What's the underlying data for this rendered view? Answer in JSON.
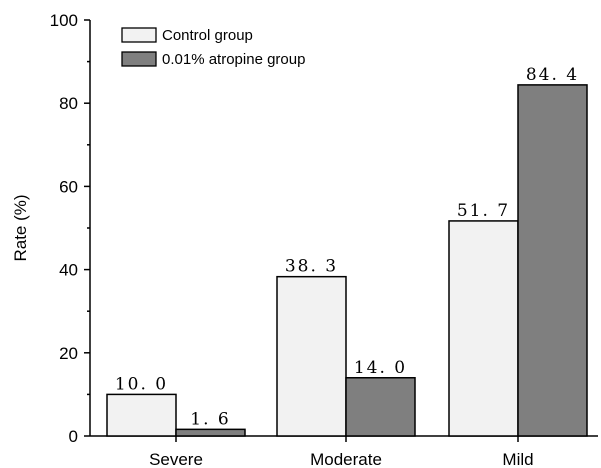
{
  "chart_data": {
    "type": "bar",
    "title": "",
    "xlabel": "",
    "ylabel": "Rate (%)",
    "ylim": [
      0,
      100
    ],
    "yticks": [
      0,
      20,
      40,
      60,
      80,
      100
    ],
    "categories": [
      "Severe",
      "Moderate",
      "Mild"
    ],
    "series": [
      {
        "name": "Control group",
        "values": [
          10.0,
          38.3,
          51.7
        ],
        "color": "#f2f2f2"
      },
      {
        "name": "0.01% atropine group",
        "values": [
          1.6,
          14.0,
          84.4
        ],
        "color": "#7f7f7f"
      }
    ],
    "value_labels": [
      [
        "10. 0",
        "38. 3",
        "51. 7"
      ],
      [
        "1. 6",
        "14. 0",
        "84. 4"
      ]
    ],
    "grid": false,
    "legend_position": "top-left"
  }
}
